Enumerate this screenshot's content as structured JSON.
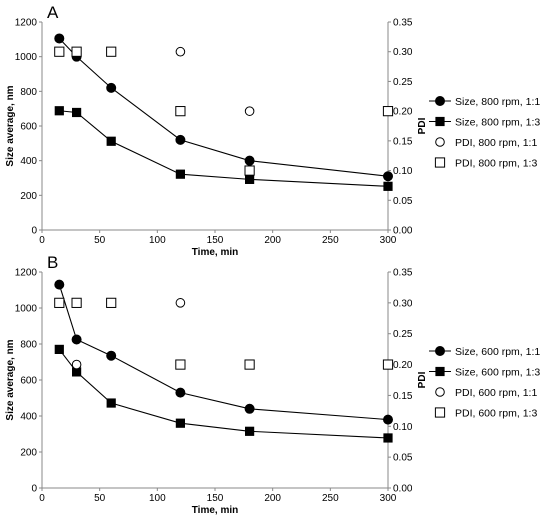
{
  "chart_data": [
    {
      "type": "line",
      "panel_label": "A",
      "xlabel": "Time, min",
      "ylabel": "Size average, nm",
      "y2label": "PDI",
      "xlim": [
        0,
        300
      ],
      "ylim": [
        0,
        1200
      ],
      "y2lim": [
        0,
        0.35
      ],
      "x_ticks": [
        "0",
        "50",
        "100",
        "150",
        "200",
        "250",
        "300"
      ],
      "y_ticks": [
        "0",
        "200",
        "400",
        "600",
        "800",
        "1000",
        "1200"
      ],
      "y2_ticks": [
        "0.00",
        "0.05",
        "0.10",
        "0.15",
        "0.20",
        "0.25",
        "0.30",
        "0.35"
      ],
      "legend_position": "right",
      "series": [
        {
          "name": "Size, 800 rpm, 1:1",
          "axis": "left",
          "marker": "filled-circle",
          "line": true,
          "points": [
            [
              15,
              1105
            ],
            [
              30,
              1000
            ],
            [
              60,
              820
            ],
            [
              120,
              520
            ],
            [
              180,
              400
            ],
            [
              300,
              310
            ]
          ]
        },
        {
          "name": "Size, 800 rpm, 1:3",
          "axis": "left",
          "marker": "filled-square",
          "line": true,
          "points": [
            [
              15,
              688
            ],
            [
              30,
              678
            ],
            [
              60,
              512
            ],
            [
              120,
              322
            ],
            [
              180,
              292
            ],
            [
              300,
              252
            ]
          ]
        },
        {
          "name": "PDI, 800 rpm, 1:1",
          "axis": "right",
          "marker": "open-circle",
          "line": false,
          "points": [
            [
              120,
              0.3
            ],
            [
              180,
              0.2
            ]
          ]
        },
        {
          "name": "PDI, 800 rpm, 1:3",
          "axis": "right",
          "marker": "open-square",
          "line": false,
          "points": [
            [
              15,
              0.3
            ],
            [
              30,
              0.3
            ],
            [
              60,
              0.3
            ],
            [
              120,
              0.2
            ],
            [
              180,
              0.1
            ],
            [
              300,
              0.2
            ]
          ]
        }
      ]
    },
    {
      "type": "line",
      "panel_label": "B",
      "xlabel": "Time, min",
      "ylabel": "Size average, nm",
      "y2label": "PDI",
      "xlim": [
        0,
        300
      ],
      "ylim": [
        0,
        1200
      ],
      "y2lim": [
        0,
        0.35
      ],
      "x_ticks": [
        "0",
        "50",
        "100",
        "150",
        "200",
        "250",
        "300"
      ],
      "y_ticks": [
        "0",
        "200",
        "400",
        "600",
        "800",
        "1000",
        "1200"
      ],
      "y2_ticks": [
        "0.00",
        "0.05",
        "0.10",
        "0.15",
        "0.20",
        "0.25",
        "0.30",
        "0.35"
      ],
      "legend_position": "right",
      "series": [
        {
          "name": "Size, 600 rpm, 1:1",
          "axis": "left",
          "marker": "filled-circle",
          "line": true,
          "points": [
            [
              15,
              1130
            ],
            [
              30,
              825
            ],
            [
              60,
              735
            ],
            [
              120,
              530
            ],
            [
              180,
              440
            ],
            [
              300,
              380
            ]
          ]
        },
        {
          "name": "Size, 600 rpm, 1:3",
          "axis": "left",
          "marker": "filled-square",
          "line": true,
          "points": [
            [
              15,
              770
            ],
            [
              30,
              645
            ],
            [
              60,
              472
            ],
            [
              120,
              360
            ],
            [
              180,
              315
            ],
            [
              300,
              278
            ]
          ]
        },
        {
          "name": "PDI, 600 rpm, 1:1",
          "axis": "right",
          "marker": "open-circle",
          "line": false,
          "points": [
            [
              30,
              0.2
            ],
            [
              120,
              0.3
            ]
          ]
        },
        {
          "name": "PDI, 600 rpm, 1:3",
          "axis": "right",
          "marker": "open-square",
          "line": false,
          "points": [
            [
              15,
              0.3
            ],
            [
              30,
              0.3
            ],
            [
              60,
              0.3
            ],
            [
              120,
              0.2
            ],
            [
              180,
              0.2
            ],
            [
              300,
              0.2
            ]
          ]
        }
      ]
    }
  ]
}
